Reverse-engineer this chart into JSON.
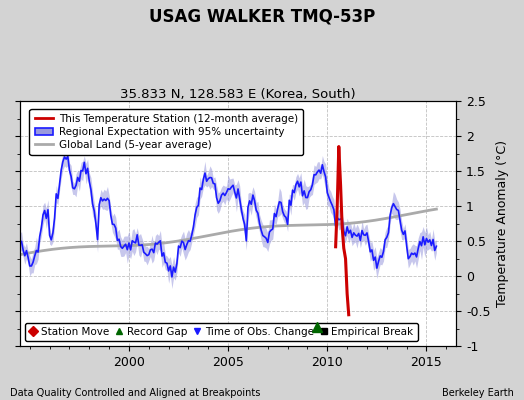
{
  "title": "USAG WALKER TMQ-53P",
  "subtitle": "35.833 N, 128.583 E (Korea, South)",
  "ylabel": "Temperature Anomaly (°C)",
  "xlabel_left": "Data Quality Controlled and Aligned at Breakpoints",
  "xlabel_right": "Berkeley Earth",
  "xlim": [
    1994.5,
    2016.5
  ],
  "ylim": [
    -1.0,
    2.5
  ],
  "yticks": [
    -1.0,
    -0.5,
    0.0,
    0.5,
    1.0,
    1.5,
    2.0,
    2.5
  ],
  "xticks": [
    2000,
    2005,
    2010,
    2015
  ],
  "bg_color": "#d3d3d3",
  "plot_bg_color": "#ffffff",
  "grid_color": "#c0c0c0",
  "blue_line_color": "#1a1aff",
  "blue_fill_color": "#9999dd",
  "red_line_color": "#cc0000",
  "gray_line_color": "#aaaaaa",
  "record_gap_marker_color": "#006600",
  "record_gap_x": 2009.5,
  "record_gap_y": -0.72,
  "legend_labels": [
    "This Temperature Station (12-month average)",
    "Regional Expectation with 95% uncertainty",
    "Global Land (5-year average)"
  ],
  "legend_marker_labels": [
    "Station Move",
    "Record Gap",
    "Time of Obs. Change",
    "Empirical Break"
  ]
}
